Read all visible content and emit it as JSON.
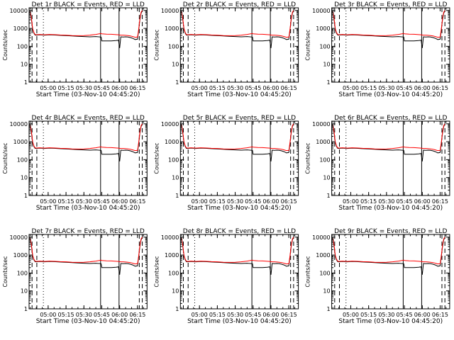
{
  "x_tick_labels": [
    "05:00",
    "05:15",
    "05:30",
    "05:45",
    "06:00",
    "06:15"
  ],
  "x_tick_minutes": [
    15,
    30,
    45,
    60,
    75,
    90
  ],
  "x_range_minutes": [
    -1,
    98
  ],
  "ylabel": "Counts/sec",
  "y_tick_labels": [
    "1",
    "10",
    "100",
    "1000",
    "10000"
  ],
  "y_range_log": [
    0,
    4.15
  ],
  "colors": {
    "events": "#000000",
    "lld": "#ff0000"
  },
  "chart_data": [
    {
      "type": "line",
      "detector": "1r",
      "title": "Det 1r BLACK = Events, RED = LLD",
      "xlabel": "Start Time (03-Nov-10 04:45:20)"
    },
    {
      "type": "line",
      "detector": "2r",
      "title": "Det 2r BLACK = Events, RED = LLD",
      "xlabel": "Start Time (03-Nov-10 04:45:20)"
    },
    {
      "type": "line",
      "detector": "3r",
      "title": "Det 3r BLACK = Events, RED = LLD",
      "xlabel": "Start Time (03-Nov-10 04:45:20)"
    },
    {
      "type": "line",
      "detector": "4r",
      "title": "Det 4r BLACK = Events, RED = LLD",
      "xlabel": "Start Time (03-Nov-10 04:45:20)"
    },
    {
      "type": "line",
      "detector": "5r",
      "title": "Det 5r BLACK = Events, RED = LLD",
      "xlabel": "Start Time (03-Nov-10 04:45:20)"
    },
    {
      "type": "line",
      "detector": "6r",
      "title": "Det 6r BLACK = Events, RED = LLD",
      "xlabel": "Start Time (03-Nov-10 04:45:20)"
    },
    {
      "type": "line",
      "detector": "7r",
      "title": "Det 7r BLACK = Events, RED = LLD",
      "xlabel": "Start Time (03-Nov-10 04:45:20)"
    },
    {
      "type": "line",
      "detector": "8r",
      "title": "Det 8r BLACK = Events, RED = LLD",
      "xlabel": "Start Time (03-Nov-10 04:45:20)"
    },
    {
      "type": "line",
      "detector": "9r",
      "title": "Det 9r BLACK = Events, RED = LLD",
      "xlabel": "Start Time (03-Nov-10 04:45:20)"
    }
  ],
  "series_events": {
    "name": "Events",
    "x": [
      0,
      1,
      2,
      3,
      4,
      5,
      6,
      8,
      12,
      16,
      20,
      25,
      30,
      35,
      40,
      45,
      50,
      55,
      59.5,
      60,
      64,
      68,
      72,
      74,
      75,
      76,
      78,
      80,
      82,
      84,
      86,
      88,
      90,
      91,
      92,
      93,
      94
    ],
    "y": [
      8000,
      3000,
      900,
      550,
      430,
      420,
      430,
      440,
      420,
      440,
      430,
      410,
      400,
      380,
      360,
      350,
      340,
      350,
      330,
      200,
      200,
      200,
      210,
      220,
      80,
      340,
      330,
      340,
      330,
      310,
      280,
      240,
      250,
      800,
      3000,
      7000,
      10000
    ]
  },
  "series_lld": {
    "name": "LLD",
    "x": [
      0,
      1,
      2,
      3,
      4,
      5,
      6,
      8,
      12,
      16,
      20,
      25,
      30,
      35,
      40,
      45,
      50,
      55,
      59.5,
      60,
      64,
      68,
      72,
      74,
      75,
      76,
      78,
      80,
      82,
      84,
      86,
      88,
      90,
      91,
      92,
      93,
      94
    ],
    "y": [
      9000,
      3500,
      1000,
      600,
      460,
      440,
      450,
      460,
      440,
      460,
      450,
      430,
      420,
      400,
      390,
      400,
      420,
      460,
      520,
      500,
      480,
      470,
      450,
      440,
      430,
      420,
      420,
      410,
      400,
      380,
      350,
      320,
      330,
      900,
      3500,
      8000,
      10000
    ]
  },
  "event_markers": [
    {
      "minute": 1.5,
      "style": "dashed"
    },
    {
      "minute": 5.5,
      "style": "dashed"
    },
    {
      "minute": 11.0,
      "style": "dotted"
    },
    {
      "minute": 59.0,
      "style": "solid"
    },
    {
      "minute": 74.5,
      "style": "solid"
    },
    {
      "minute": 91.5,
      "style": "dashed"
    },
    {
      "minute": 94.0,
      "style": "dashed"
    }
  ]
}
